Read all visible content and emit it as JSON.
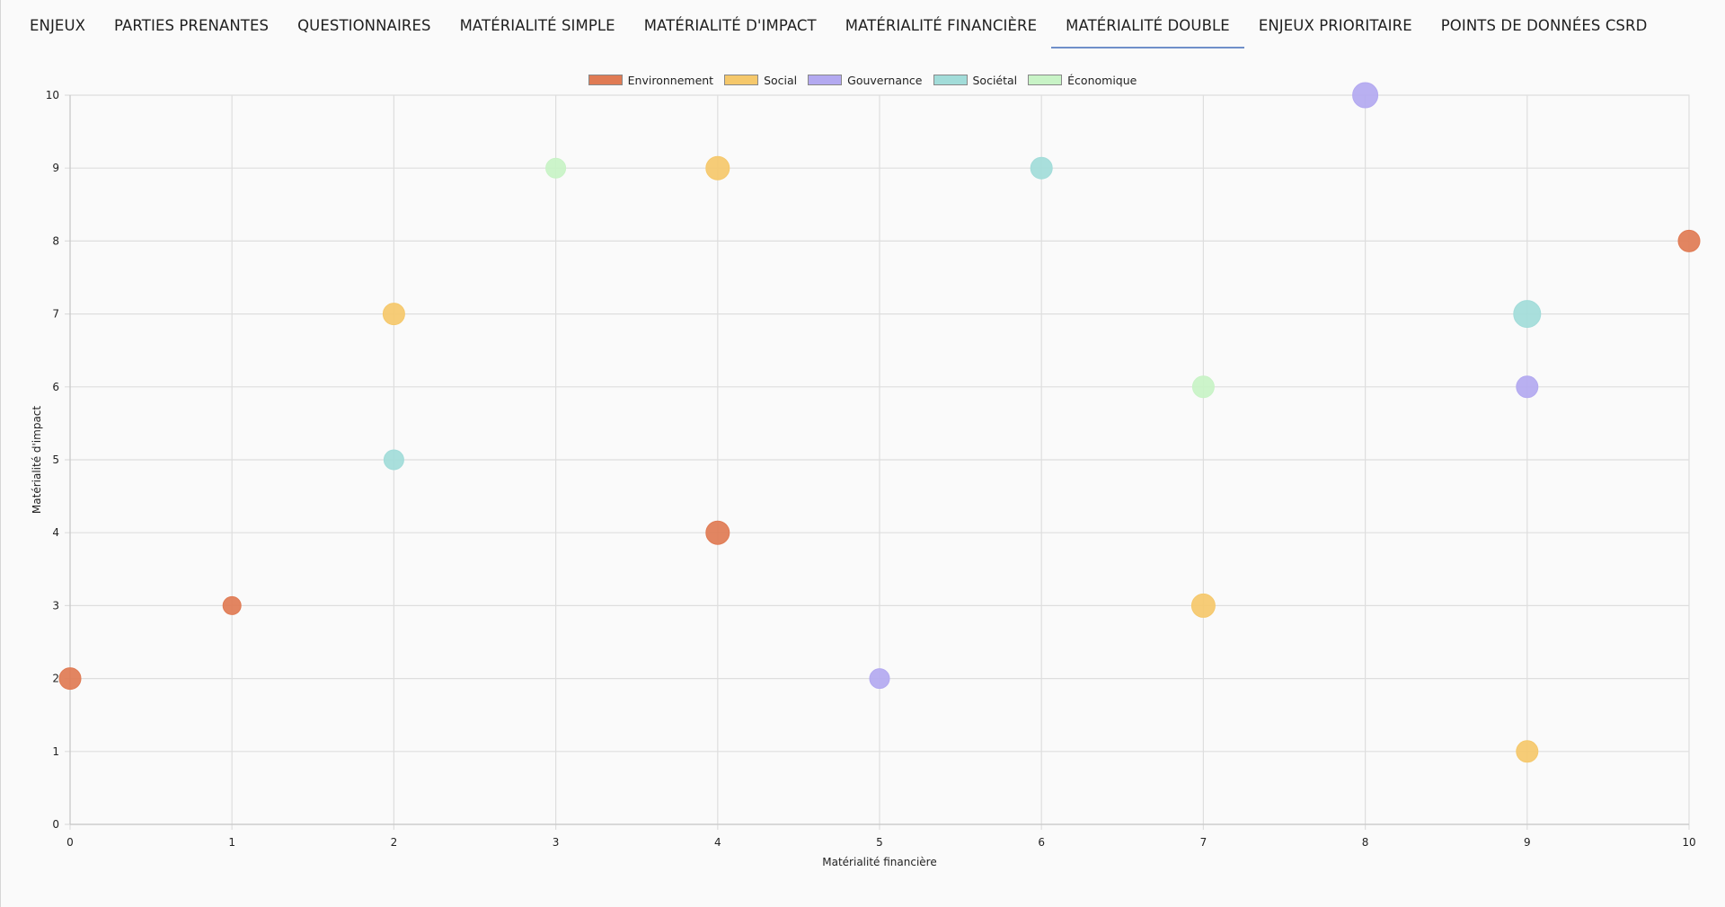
{
  "tabs": [
    {
      "label": "ENJEUX",
      "active": false
    },
    {
      "label": "PARTIES PRENANTES",
      "active": false
    },
    {
      "label": "QUESTIONNAIRES",
      "active": false
    },
    {
      "label": "MATÉRIALITÉ SIMPLE",
      "active": false
    },
    {
      "label": "MATÉRIALITÉ D'IMPACT",
      "active": false
    },
    {
      "label": "MATÉRIALITÉ FINANCIÈRE",
      "active": false
    },
    {
      "label": "MATÉRIALITÉ DOUBLE",
      "active": true
    },
    {
      "label": "ENJEUX PRIORITAIRE",
      "active": false
    },
    {
      "label": "POINTS DE DONNÉES CSRD",
      "active": false
    }
  ],
  "colors": {
    "accent": "#6f8fc9"
  },
  "chart_data": {
    "type": "scatter",
    "title": "",
    "xlabel": "Matérialité financière",
    "ylabel": "Matérialité d'impact",
    "xlim": [
      0,
      10
    ],
    "ylim": [
      0,
      10
    ],
    "xticks": [
      "0",
      "1",
      "2",
      "3",
      "4",
      "5",
      "6",
      "7",
      "8",
      "9",
      "10"
    ],
    "yticks": [
      "0",
      "1",
      "2",
      "3",
      "4",
      "5",
      "6",
      "7",
      "8",
      "9",
      "10"
    ],
    "grid": true,
    "legend_position": "top",
    "series": [
      {
        "name": "Environnement",
        "color": "#e07b54",
        "points": [
          {
            "x": 0,
            "y": 2,
            "size": 12
          },
          {
            "x": 1,
            "y": 3,
            "size": 10
          },
          {
            "x": 4,
            "y": 4,
            "size": 13
          },
          {
            "x": 10,
            "y": 8,
            "size": 12
          }
        ]
      },
      {
        "name": "Social",
        "color": "#f5c86b",
        "points": [
          {
            "x": 2,
            "y": 7,
            "size": 12
          },
          {
            "x": 4,
            "y": 9,
            "size": 13
          },
          {
            "x": 7,
            "y": 3,
            "size": 13
          },
          {
            "x": 9,
            "y": 1,
            "size": 12
          }
        ]
      },
      {
        "name": "Gouvernance",
        "color": "#b3a9f0",
        "points": [
          {
            "x": 5,
            "y": 2,
            "size": 11
          },
          {
            "x": 8,
            "y": 10,
            "size": 14
          },
          {
            "x": 9,
            "y": 6,
            "size": 12
          }
        ]
      },
      {
        "name": "Sociétal",
        "color": "#a2dcd9",
        "points": [
          {
            "x": 2,
            "y": 5,
            "size": 11
          },
          {
            "x": 6,
            "y": 9,
            "size": 12
          },
          {
            "x": 9,
            "y": 7,
            "size": 15
          }
        ]
      },
      {
        "name": "Économique",
        "color": "#c8f3c6",
        "points": [
          {
            "x": 3,
            "y": 9,
            "size": 11
          },
          {
            "x": 7,
            "y": 6,
            "size": 12
          }
        ]
      }
    ]
  }
}
